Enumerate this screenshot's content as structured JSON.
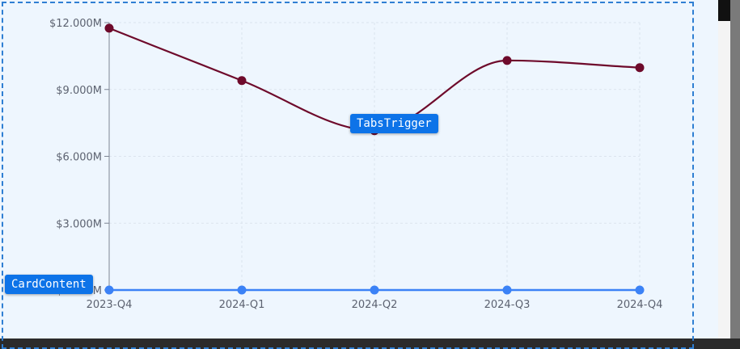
{
  "component_labels": {
    "card_content": "CardContent",
    "tabs_trigger": "TabsTrigger"
  },
  "colors": {
    "card_background": "#eef6fe",
    "revenue_line": "#6e0a2b",
    "baseline": "#3b82f6",
    "badge": "#0d73e8",
    "outline": "#2f7fd3"
  },
  "chart_data": {
    "type": "line",
    "categories": [
      "2023-Q4",
      "2024-Q1",
      "2024-Q2",
      "2024-Q3",
      "2024-Q4"
    ],
    "y_tick_labels": [
      "$0.000M",
      "$3.000M",
      "$6.000M",
      "$9.000M",
      "$12.000M"
    ],
    "y_ticks": [
      0,
      3,
      6,
      9,
      12
    ],
    "ylim": [
      0,
      12
    ],
    "grid": true,
    "series": [
      {
        "values": [
          11.75,
          9.4,
          7.15,
          10.3,
          9.98
        ],
        "color": "#6e0a2b"
      },
      {
        "values": [
          0,
          0,
          0,
          0,
          0
        ],
        "color": "#3b82f6"
      }
    ]
  }
}
